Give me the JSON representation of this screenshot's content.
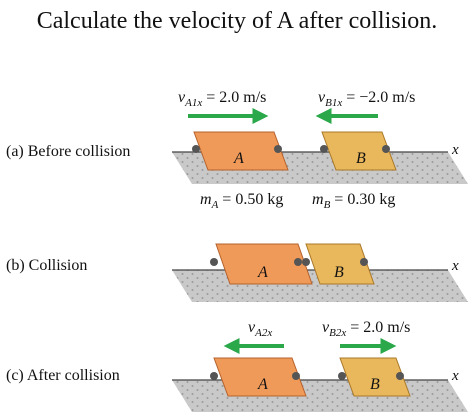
{
  "title": "Calculate the velocity of A after collision.",
  "panels": {
    "before": {
      "label": "(a) Before collision",
      "vA_sym": "v",
      "vA_sub": "A1x",
      "vA_val": "= 2.0 m/s",
      "vB_sym": "v",
      "vB_sub": "B1x",
      "vB_val": "= −2.0 m/s",
      "mA_sym": "m",
      "mA_sub": "A",
      "mA_val": "= 0.50 kg",
      "mB_sym": "m",
      "mB_sub": "B",
      "mB_val": "= 0.30 kg",
      "block_a": "A",
      "block_b": "B",
      "axis": "x"
    },
    "collision": {
      "label": "(b) Collision",
      "block_a": "A",
      "block_b": "B",
      "axis": "x"
    },
    "after": {
      "label": "(c) After collision",
      "vA_sym": "v",
      "vA_sub": "A2x",
      "vB_sym": "v",
      "vB_sub": "B2x",
      "vB_val": "= 2.0 m/s",
      "block_a": "A",
      "block_b": "B",
      "axis": "x"
    }
  },
  "colors": {
    "block_a_fill": "#f09a5a",
    "block_a_stroke": "#b5622c",
    "block_b_fill": "#e9b75c",
    "block_b_stroke": "#a9782a",
    "arrow": "#2aa84a",
    "ground_fill": "#c9c9c9",
    "ground_dots": "#9a9a9a",
    "wheel": "#555555"
  }
}
